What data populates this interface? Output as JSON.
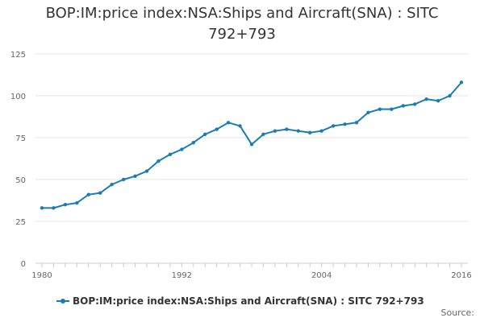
{
  "chart_data": {
    "type": "line",
    "title": "BOP:IM:price index:NSA:Ships and Aircraft(SNA) : SITC 792+793",
    "xlabel": "",
    "ylabel": "",
    "x_ticks": [
      "1980",
      "1992",
      "2004",
      "2016"
    ],
    "y_ticks": [
      "0",
      "25",
      "50",
      "75",
      "100",
      "125"
    ],
    "xlim": [
      1980,
      2016
    ],
    "ylim": [
      0,
      125
    ],
    "legend_position": "bottom",
    "grid": true,
    "series": [
      {
        "name": "BOP:IM:price index:NSA:Ships and Aircraft(SNA) : SITC 792+793",
        "color": "#1a7cb5",
        "x": [
          1980,
          1981,
          1982,
          1983,
          1984,
          1985,
          1986,
          1987,
          1988,
          1989,
          1990,
          1991,
          1992,
          1993,
          1994,
          1995,
          1996,
          1997,
          1998,
          1999,
          2000,
          2001,
          2002,
          2003,
          2004,
          2005,
          2006,
          2007,
          2008,
          2009,
          2010,
          2011,
          2012,
          2013,
          2014,
          2015,
          2016
        ],
        "values": [
          33,
          33,
          35,
          36,
          41,
          42,
          47,
          50,
          52,
          55,
          61,
          65,
          68,
          72,
          77,
          80,
          84,
          82,
          71,
          77,
          79,
          80,
          79,
          78,
          79,
          82,
          83,
          84,
          90,
          92,
          92,
          94,
          95,
          98,
          97,
          100,
          108
        ]
      }
    ]
  },
  "source_label": "Source:"
}
